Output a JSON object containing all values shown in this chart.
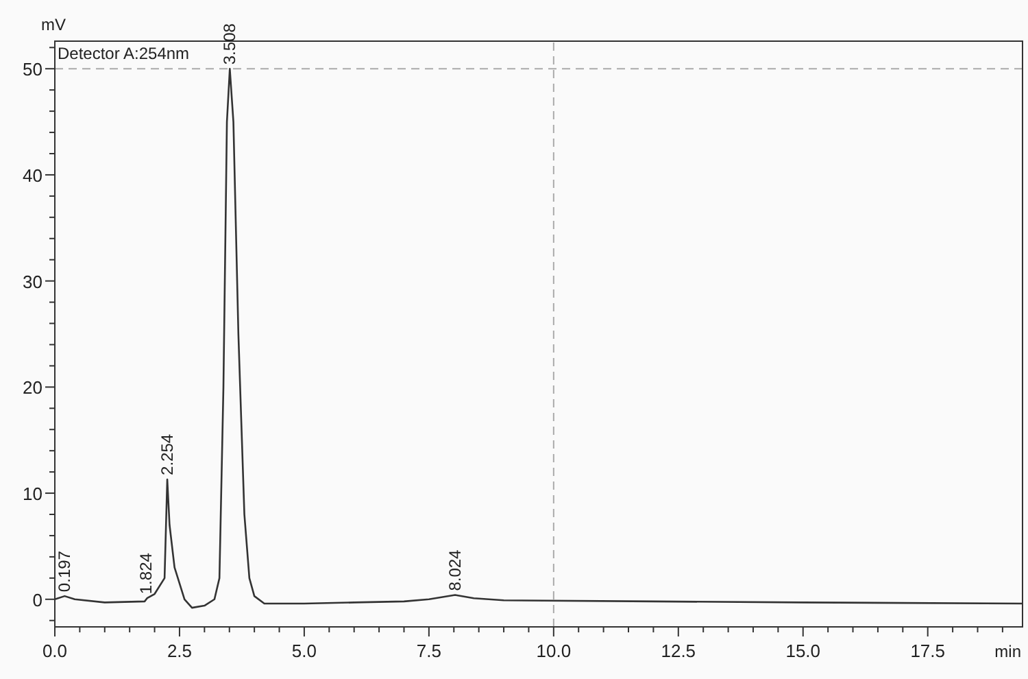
{
  "chart_data": {
    "type": "line",
    "title": "Detector A:254nm",
    "xlabel": "min",
    "ylabel": "mV",
    "series": [
      {
        "color": "#333333",
        "x": [
          0,
          0.197,
          0.4,
          1.0,
          1.8,
          1.85,
          2.0,
          2.2,
          2.254,
          2.3,
          2.4,
          2.6,
          2.75,
          3.0,
          3.2,
          3.3,
          3.38,
          3.45,
          3.508,
          3.58,
          3.68,
          3.8,
          3.9,
          4.0,
          4.2,
          5.0,
          6.0,
          7.0,
          7.5,
          8.024,
          8.4,
          9.0,
          12.0,
          15.0,
          19.4
        ],
        "values": [
          0,
          0.3,
          0,
          -0.3,
          -0.2,
          0.1,
          0.5,
          2,
          11.3,
          7,
          3,
          0,
          -0.8,
          -0.6,
          0,
          2,
          20,
          45,
          50,
          45,
          25,
          8,
          2,
          0.3,
          -0.4,
          -0.4,
          -0.3,
          -0.2,
          0,
          0.4,
          0.1,
          -0.1,
          -0.2,
          -0.3,
          -0.4
        ]
      }
    ],
    "xlim": [
      0,
      19.4
    ],
    "ylim": [
      -2.6,
      52.6
    ],
    "xticks": [
      {
        "value": 0,
        "label": "0.0"
      },
      {
        "value": 0.5,
        "label": null
      },
      {
        "value": 1,
        "label": null
      },
      {
        "value": 1.5,
        "label": null
      },
      {
        "value": 2,
        "label": null
      },
      {
        "value": 2.5,
        "label": "2.5"
      },
      {
        "value": 3,
        "label": null
      },
      {
        "value": 3.5,
        "label": null
      },
      {
        "value": 4,
        "label": null
      },
      {
        "value": 4.5,
        "label": null
      },
      {
        "value": 5,
        "label": "5.0"
      },
      {
        "value": 5.5,
        "label": null
      },
      {
        "value": 6,
        "label": null
      },
      {
        "value": 6.5,
        "label": null
      },
      {
        "value": 7,
        "label": null
      },
      {
        "value": 7.5,
        "label": "7.5"
      },
      {
        "value": 8,
        "label": null
      },
      {
        "value": 8.5,
        "label": null
      },
      {
        "value": 9,
        "label": null
      },
      {
        "value": 9.5,
        "label": null
      },
      {
        "value": 10,
        "label": "10.0"
      },
      {
        "value": 10.5,
        "label": null
      },
      {
        "value": 11,
        "label": null
      },
      {
        "value": 11.5,
        "label": null
      },
      {
        "value": 12,
        "label": null
      },
      {
        "value": 12.5,
        "label": "12.5"
      },
      {
        "value": 13,
        "label": null
      },
      {
        "value": 13.5,
        "label": null
      },
      {
        "value": 14,
        "label": null
      },
      {
        "value": 14.5,
        "label": null
      },
      {
        "value": 15,
        "label": "15.0"
      },
      {
        "value": 15.5,
        "label": null
      },
      {
        "value": 16,
        "label": null
      },
      {
        "value": 16.5,
        "label": null
      },
      {
        "value": 17,
        "label": null
      },
      {
        "value": 17.5,
        "label": "17.5"
      },
      {
        "value": 18,
        "label": null
      },
      {
        "value": 18.5,
        "label": null
      },
      {
        "value": 19,
        "label": null
      }
    ],
    "yticks": [
      {
        "value": -2,
        "label": null
      },
      0,
      {
        "value": 2,
        "label": null
      },
      {
        "value": 4,
        "label": null
      },
      {
        "value": 6,
        "label": null
      },
      {
        "value": 8,
        "label": null
      },
      10,
      {
        "value": 12,
        "label": null
      },
      {
        "value": 14,
        "label": null
      },
      {
        "value": 16,
        "label": null
      },
      {
        "value": 18,
        "label": null
      },
      20,
      {
        "value": 22,
        "label": null
      },
      {
        "value": 24,
        "label": null
      },
      {
        "value": 26,
        "label": null
      },
      {
        "value": 28,
        "label": null
      },
      30,
      {
        "value": 32,
        "label": null
      },
      {
        "value": 34,
        "label": null
      },
      {
        "value": 36,
        "label": null
      },
      {
        "value": 38,
        "label": null
      },
      40,
      {
        "value": 42,
        "label": null
      },
      {
        "value": 44,
        "label": null
      },
      {
        "value": 46,
        "label": null
      },
      {
        "value": 48,
        "label": null
      },
      50,
      {
        "value": 52,
        "label": null
      }
    ],
    "ref_lines": [
      {
        "axis": "x",
        "value": 10,
        "color": "#aaaaaa",
        "line_style": "dashed"
      },
      {
        "axis": "y",
        "value": 50,
        "color": "#aaaaaa",
        "line_style": "dashed"
      }
    ],
    "annotations": [
      {
        "text": "0.197",
        "x": 0.197,
        "y": 0.3
      },
      {
        "text": "1.824",
        "x": 1.824,
        "y": 0.1
      },
      {
        "text": "2.254",
        "x": 2.254,
        "y": 11.3
      },
      {
        "text": "3.508",
        "x": 3.508,
        "y": 50
      },
      {
        "text": "8.024",
        "x": 8.024,
        "y": 0.4
      }
    ]
  }
}
